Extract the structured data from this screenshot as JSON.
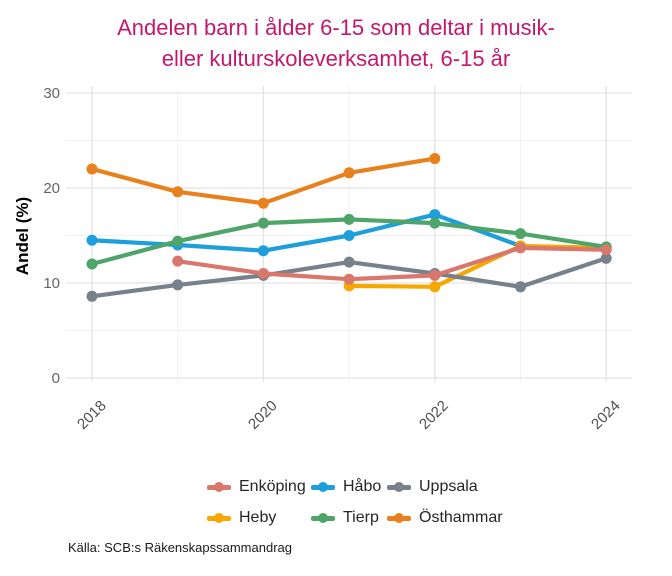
{
  "title": {
    "lines": [
      "Andelen barn i ålder 6-15 som deltar i musik-",
      "eller kulturskoleverksamhet, 6-15 år"
    ],
    "color": "#C2196E"
  },
  "y_axis": {
    "title": "Andel (%)",
    "tick_labels": [
      {
        "value": 0,
        "label": "0"
      },
      {
        "value": 10,
        "label": "10"
      },
      {
        "value": 20,
        "label": "20"
      },
      {
        "value": 30,
        "label": "30"
      }
    ],
    "minor_gridlines": [
      5,
      15,
      25
    ]
  },
  "x_axis": {
    "tick_labels": [
      {
        "value": 2018,
        "label": "2018"
      },
      {
        "value": 2020,
        "label": "2020"
      },
      {
        "value": 2022,
        "label": "2022"
      },
      {
        "value": 2024,
        "label": "2024"
      }
    ],
    "minor_gridlines": [
      2019,
      2021,
      2023
    ]
  },
  "caption": "Källa: SCB:s Räkenskapssammandrag",
  "colors": {
    "title": "#C2196E",
    "grid_major": "#E3E3E3",
    "grid_minor": "#F1F1F1",
    "axis_text": "#4d4d4d",
    "background": "#FFFFFF"
  },
  "chart_data": {
    "type": "line",
    "title": "Andelen barn i ålder 6-15 som deltar i musik- eller kulturskoleverksamhet, 6-15 år",
    "xlabel": "",
    "ylabel": "Andel (%)",
    "ylim": [
      0,
      30
    ],
    "grid": "major and minor, light gray on white",
    "legend_position": "bottom",
    "x": [
      2018,
      2019,
      2020,
      2021,
      2022,
      2023,
      2024
    ],
    "series": [
      {
        "name": "Enköping",
        "color": "#D9776C",
        "values": [
          null,
          12.3,
          11.0,
          10.4,
          10.8,
          13.7,
          13.5
        ]
      },
      {
        "name": "Håbo",
        "color": "#1C9FDA",
        "values": [
          14.5,
          14.0,
          13.4,
          15.0,
          17.2,
          13.9,
          null
        ]
      },
      {
        "name": "Uppsala",
        "color": "#76818C",
        "values": [
          8.6,
          9.8,
          10.8,
          12.2,
          11.0,
          9.6,
          12.6
        ]
      },
      {
        "name": "Heby",
        "color": "#F6A800",
        "values": [
          null,
          null,
          null,
          9.7,
          9.6,
          13.9,
          13.7
        ]
      },
      {
        "name": "Tierp",
        "color": "#4FA46A",
        "values": [
          12.0,
          14.4,
          16.3,
          16.7,
          16.3,
          15.2,
          13.8
        ]
      },
      {
        "name": "Östhammar",
        "color": "#E8811C",
        "values": [
          22.0,
          19.6,
          18.4,
          21.6,
          23.1,
          null,
          null
        ]
      }
    ],
    "draw_order": [
      "Håbo",
      "Heby",
      "Uppsala",
      "Tierp",
      "Enköping",
      "Östhammar"
    ],
    "legend_rows": [
      [
        "Enköping",
        "Håbo",
        "Uppsala"
      ],
      [
        "Heby",
        "Tierp",
        "Östhammar"
      ]
    ]
  }
}
